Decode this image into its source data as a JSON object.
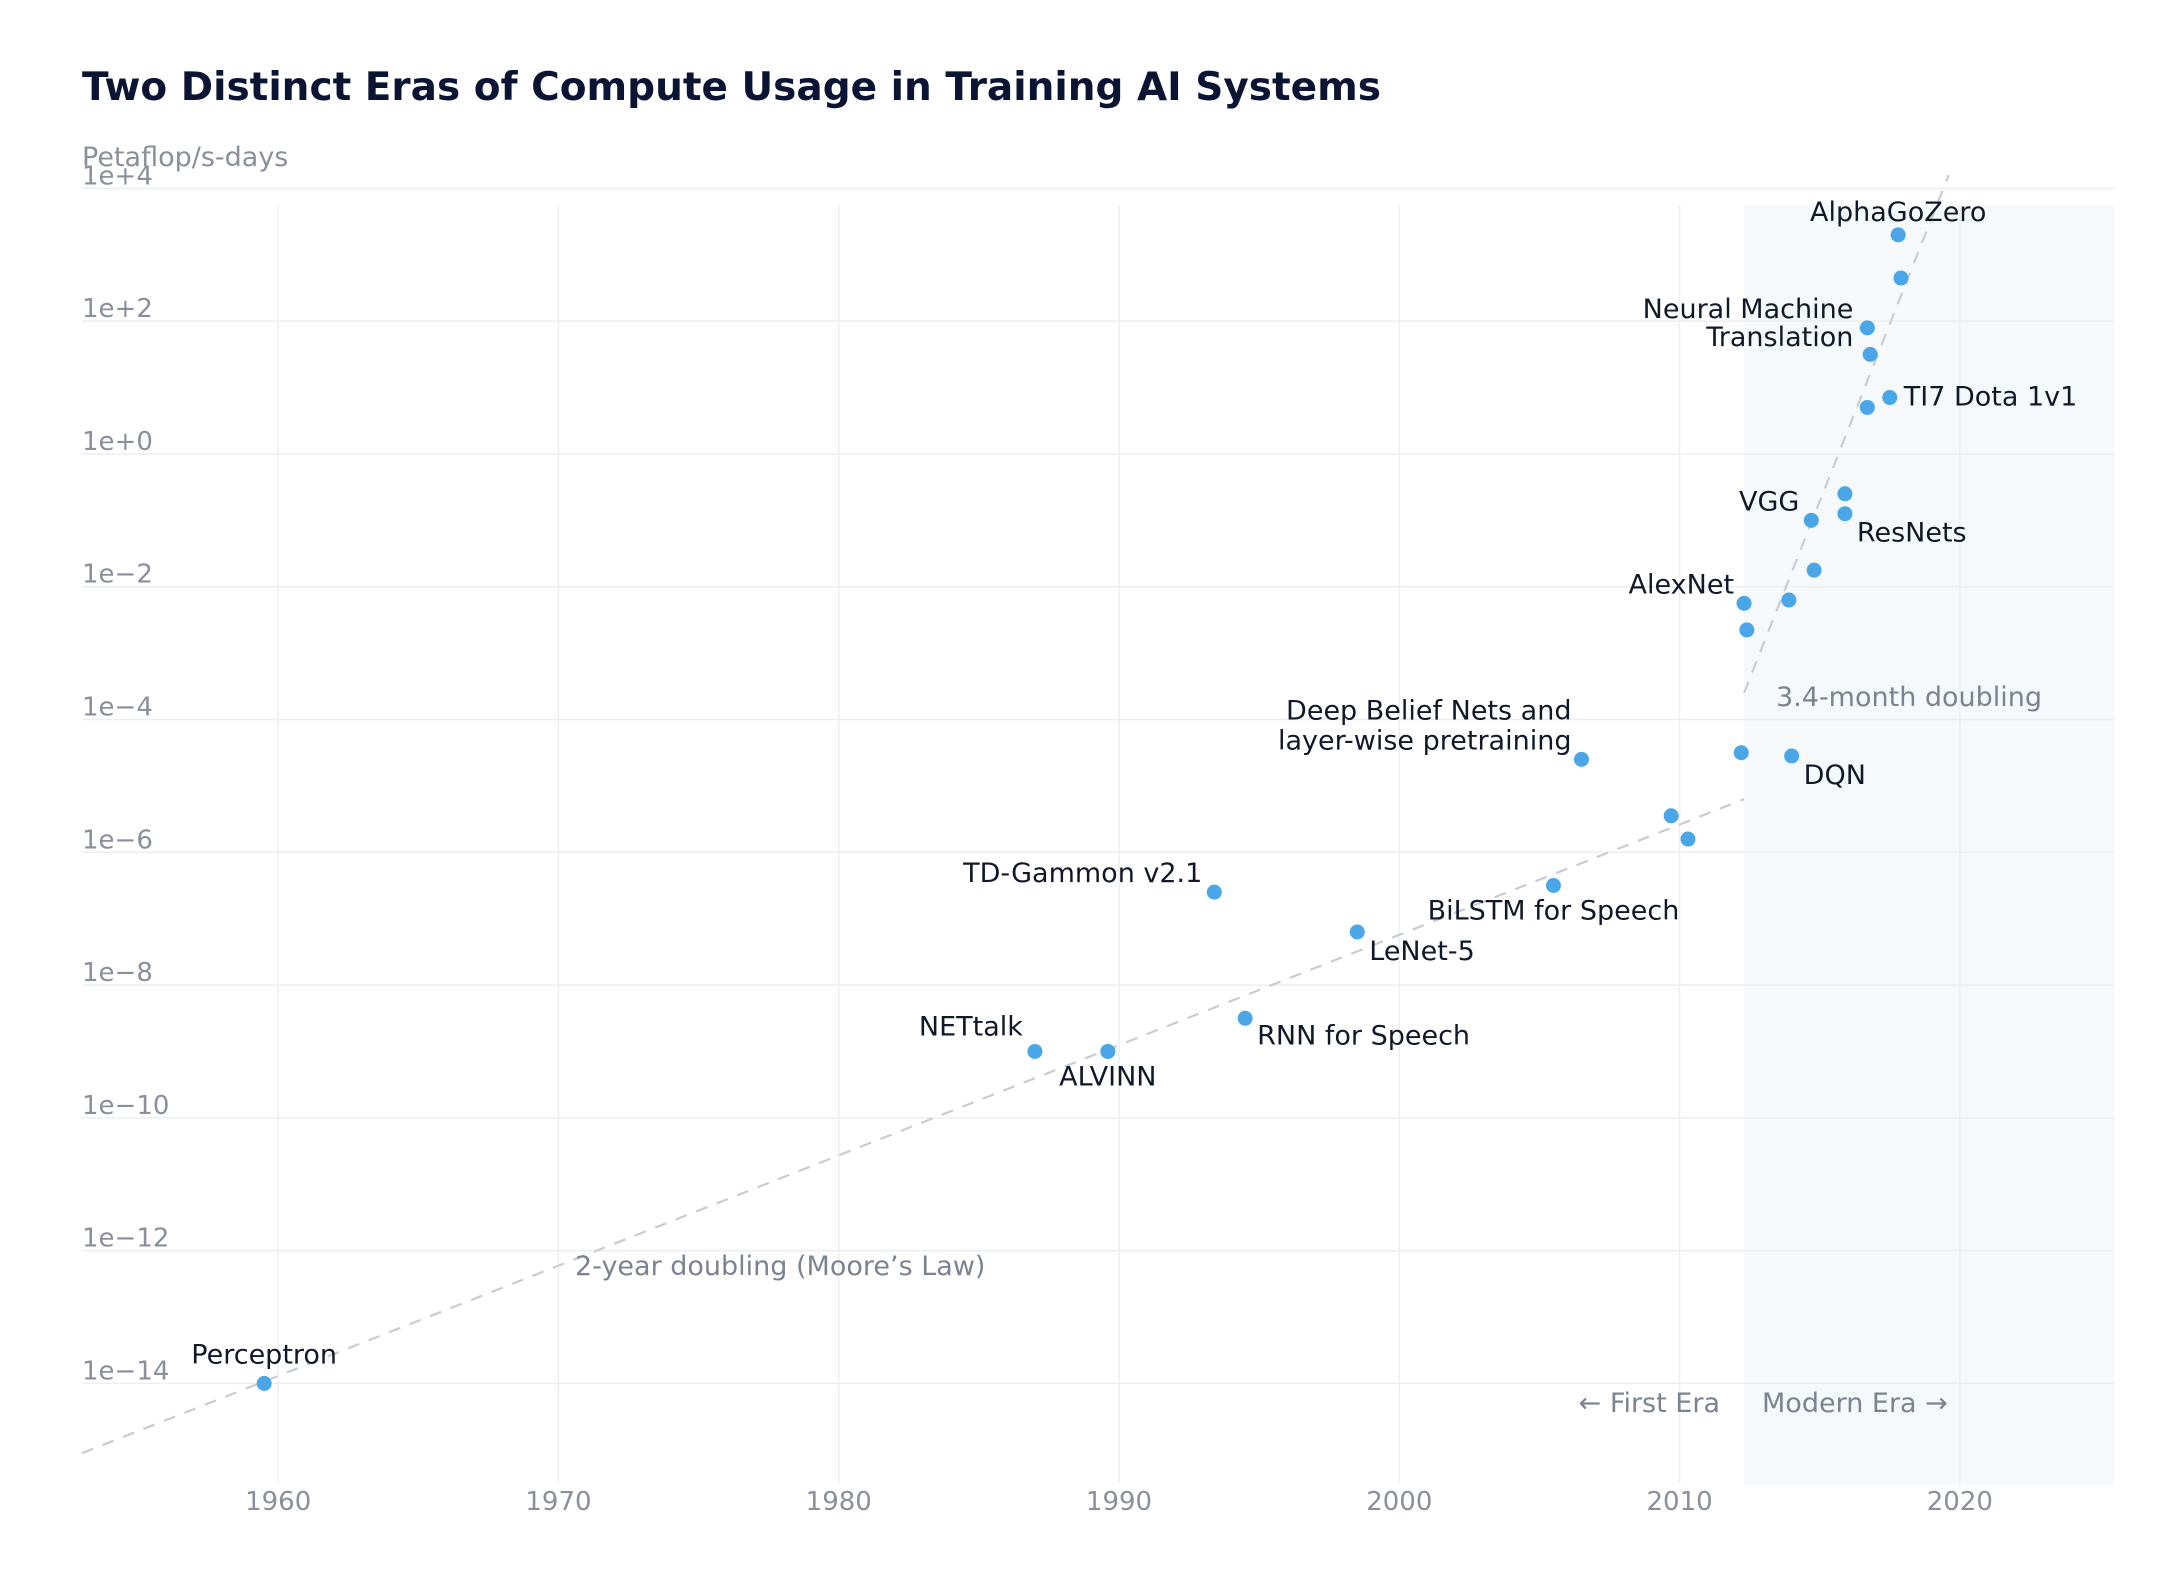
{
  "chart_data": {
    "type": "scatter",
    "title": "Two Distinct Eras of Compute Usage in Training AI Systems",
    "ylabel": "Petaflop/s-days",
    "xlabel": "",
    "y_scale": "log",
    "xlim": [
      1953,
      2025.5
    ],
    "ylim_exp": [
      -15.5,
      3.75
    ],
    "x_ticks": [
      1960,
      1970,
      1980,
      1990,
      2000,
      2010,
      2020
    ],
    "y_ticks": [
      {
        "exp": 4,
        "label": "1e+4"
      },
      {
        "exp": 2,
        "label": "1e+2"
      },
      {
        "exp": 0,
        "label": "1e+0"
      },
      {
        "exp": -2,
        "label": "1e−2"
      },
      {
        "exp": -4,
        "label": "1e−4"
      },
      {
        "exp": -6,
        "label": "1e−6"
      },
      {
        "exp": -8,
        "label": "1e−8"
      },
      {
        "exp": -10,
        "label": "1e−10"
      },
      {
        "exp": -12,
        "label": "1e−12"
      },
      {
        "exp": -14,
        "label": "1e−14"
      }
    ],
    "grid": true,
    "colors": {
      "point": "#4aa6e6",
      "modern_era_shade": "#f5f9fb",
      "trend": "#c9ccd2"
    },
    "modern_era_start": 2012.3,
    "points": [
      {
        "x": 1959.5,
        "y_exp": -14.0,
        "label": "Perceptron",
        "align": "middle",
        "dx": 0,
        "dy": -20
      },
      {
        "x": 1987.0,
        "y_exp": -9.0,
        "label": "NETtalk",
        "align": "end",
        "dx": -12,
        "dy": -16
      },
      {
        "x": 1989.6,
        "y_exp": -9.0,
        "label": "ALVINN",
        "align": "middle",
        "dx": 0,
        "dy": 34
      },
      {
        "x": 1993.4,
        "y_exp": -6.6,
        "label": "TD-Gammon v2.1",
        "align": "end",
        "dx": -12,
        "dy": -10
      },
      {
        "x": 1994.5,
        "y_exp": -8.5,
        "label": "RNN for Speech",
        "align": "start",
        "dx": 12,
        "dy": 26
      },
      {
        "x": 1998.5,
        "y_exp": -7.2,
        "label": "LeNet-5",
        "align": "start",
        "dx": 12,
        "dy": 28
      },
      {
        "x": 2005.5,
        "y_exp": -6.5,
        "label": "BiLSTM for Speech",
        "align": "middle",
        "dx": 0,
        "dy": 34
      },
      {
        "x": 2006.5,
        "y_exp": -4.6,
        "label": "Deep Belief Nets and",
        "label2": "layer-wise pretraining",
        "align": "end",
        "dx": -10,
        "dy": -40,
        "dy2": -10
      },
      {
        "x": 2009.7,
        "y_exp": -5.45,
        "label": ""
      },
      {
        "x": 2010.3,
        "y_exp": -5.8,
        "label": ""
      },
      {
        "x": 2012.2,
        "y_exp": -4.5,
        "label": ""
      },
      {
        "x": 2012.3,
        "y_exp": -2.25,
        "label": "AlexNet",
        "align": "end",
        "dx": -10,
        "dy": -10
      },
      {
        "x": 2012.4,
        "y_exp": -2.65,
        "label": ""
      },
      {
        "x": 2013.9,
        "y_exp": -2.2,
        "label": ""
      },
      {
        "x": 2014.0,
        "y_exp": -4.55,
        "label": "DQN",
        "align": "start",
        "dx": 12,
        "dy": 28
      },
      {
        "x": 2014.7,
        "y_exp": -1.0,
        "label": "VGG",
        "align": "end",
        "dx": -12,
        "dy": -10
      },
      {
        "x": 2014.8,
        "y_exp": -1.75,
        "label": ""
      },
      {
        "x": 2015.9,
        "y_exp": -0.6,
        "label": ""
      },
      {
        "x": 2015.9,
        "y_exp": -0.9,
        "label": "ResNets",
        "align": "start",
        "dx": 12,
        "dy": 28
      },
      {
        "x": 2016.7,
        "y_exp": 1.9,
        "label": "Neural Machine",
        "label2": "Translation",
        "align": "end",
        "dx": -14,
        "dy": -10,
        "dy2": 18
      },
      {
        "x": 2016.8,
        "y_exp": 1.5,
        "label": ""
      },
      {
        "x": 2016.7,
        "y_exp": 0.7,
        "label": ""
      },
      {
        "x": 2017.5,
        "y_exp": 0.85,
        "label": "TI7 Dota 1v1",
        "align": "start",
        "dx": 14,
        "dy": 8
      },
      {
        "x": 2017.8,
        "y_exp": 3.3,
        "label": "AlphaGoZero",
        "align": "middle",
        "dx": 0,
        "dy": -14
      },
      {
        "x": 2017.9,
        "y_exp": 2.65,
        "label": ""
      }
    ],
    "trend_lines": [
      {
        "name": "2-year doubling (Moore’s Law)",
        "from": [
          1953,
          -15.05
        ],
        "to": [
          2012.3,
          -5.2
        ]
      },
      {
        "name": "3.4-month doubling",
        "from": [
          2012.3,
          -3.6
        ],
        "to": [
          2019.6,
          4.2
        ]
      }
    ],
    "annotations": {
      "moores_law": "2-year doubling (Moore’s Law)",
      "fast_doubling": "3.4-month doubling",
      "first_era": "← First Era",
      "modern_era": "Modern Era →"
    }
  }
}
